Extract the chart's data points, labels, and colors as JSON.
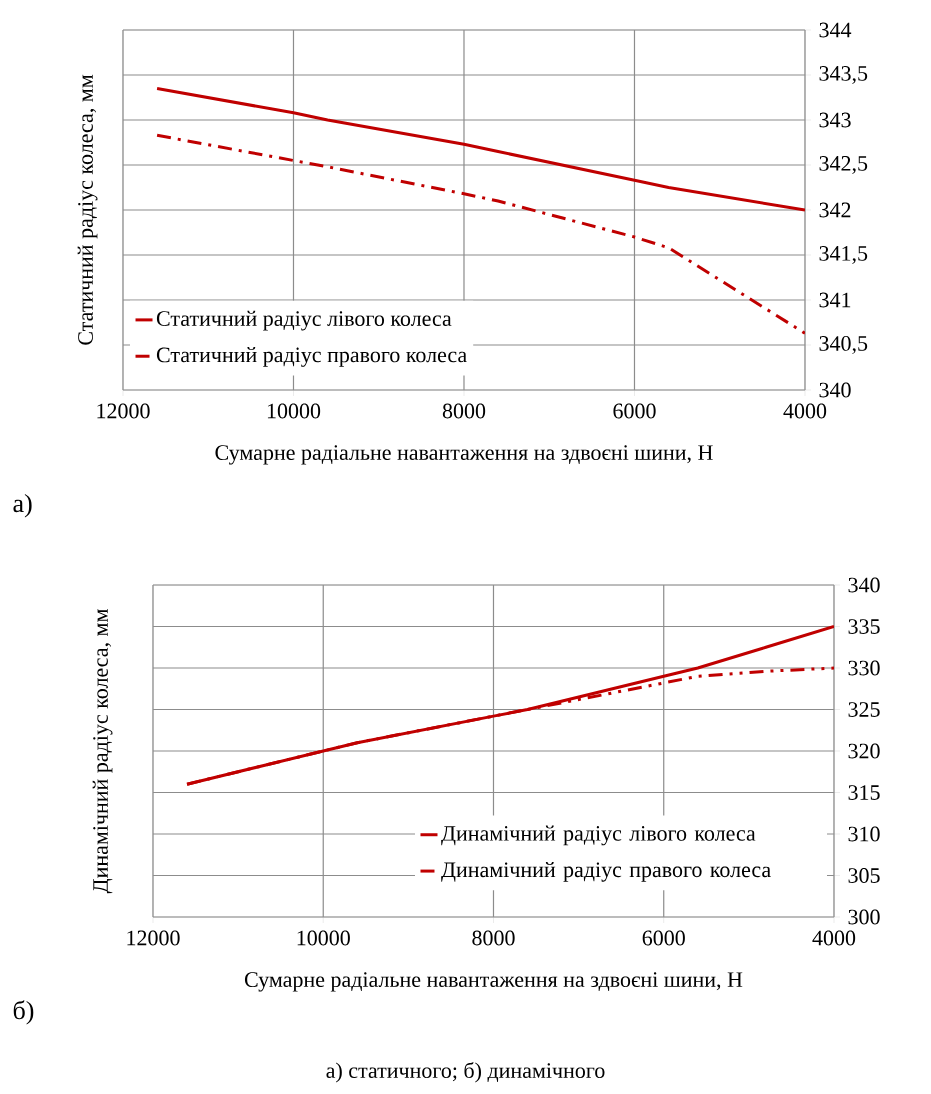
{
  "chart_data": [
    {
      "type": "line",
      "xlabel": "Сумарне радіальне навантаження на здвоєні шини, Н",
      "ylabel": "Статичний радіус колеса, мм",
      "x": [
        11600,
        10000,
        9600,
        8000,
        7600,
        6000,
        5600,
        4000
      ],
      "series": [
        {
          "name": "Статичний радіус лівого колеса",
          "color": "#c00000",
          "line_style": "solid",
          "values": [
            343.35,
            343.08,
            343.0,
            342.73,
            342.65,
            342.33,
            342.25,
            342.0
          ]
        },
        {
          "name": "Статичний радіус правого колеса",
          "color": "#c00000",
          "line_style": "dashdot",
          "values": [
            342.83,
            342.55,
            342.48,
            342.18,
            342.1,
            341.7,
            341.58,
            340.63
          ]
        }
      ],
      "xlim": [
        12000,
        4000
      ],
      "ylim": [
        340,
        344
      ],
      "xticks": [
        12000,
        10000,
        8000,
        6000,
        4000
      ],
      "yticks": [
        340,
        {
          "value": 340.5,
          "label": "340,5"
        },
        341,
        {
          "value": 341.5,
          "label": "341,5"
        },
        342,
        {
          "value": 342.5,
          "label": "342,5"
        },
        343,
        {
          "value": 343.5,
          "label": "343,5"
        },
        344
      ],
      "grid": true,
      "legend": "bottom left",
      "annotations": [
        "а)"
      ]
    },
    {
      "type": "line",
      "xlabel": "Сумарне радіальне навантаження на здвоєні шини, Н",
      "ylabel": "Динамічний радіус колеса, мм",
      "x": [
        11600,
        10000,
        9600,
        8000,
        7600,
        6000,
        5600,
        4800,
        4000
      ],
      "series": [
        {
          "name": "Динамічний радіус лівого колеса",
          "color": "#c00000",
          "line_style": "solid",
          "values": [
            316,
            320,
            321,
            324.2,
            325,
            329,
            330,
            332.5,
            335
          ]
        },
        {
          "name": "Динамічний радіус правого колеса",
          "color": "#c00000",
          "line_style": "dashdotdot",
          "values": [
            316,
            320,
            321,
            324.2,
            325,
            328.2,
            329,
            329.6,
            330
          ]
        }
      ],
      "xlim": [
        12000,
        4000
      ],
      "ylim": [
        300,
        340
      ],
      "xticks": [
        12000,
        10000,
        8000,
        6000,
        4000
      ],
      "yticks": [
        300,
        305,
        310,
        315,
        320,
        325,
        330,
        335,
        340
      ],
      "grid": true,
      "legend": "bottom right",
      "annotations": [
        "б)",
        "а) статичного; б) динамічного"
      ]
    }
  ]
}
